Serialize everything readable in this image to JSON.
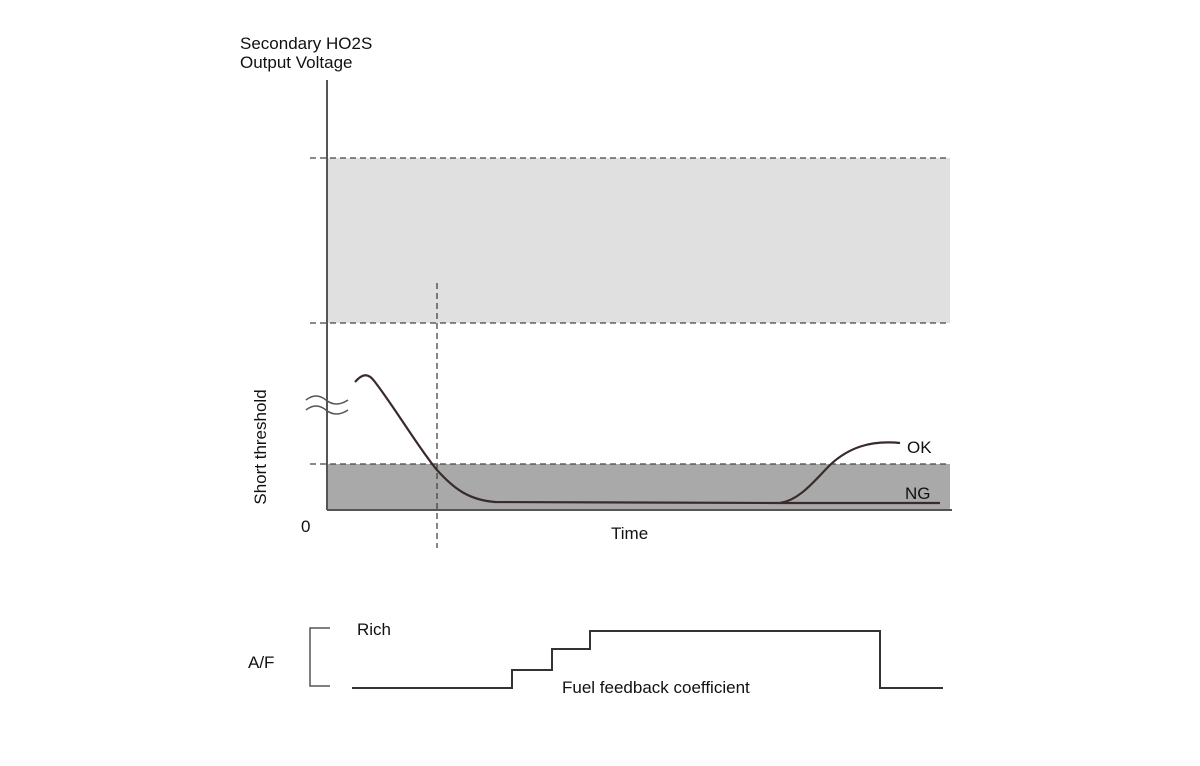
{
  "axis": {
    "title_line1": "Secondary HO2S",
    "title_line2": "Output Voltage",
    "threshold_label": "Short threshold",
    "origin": "0",
    "x_label": "Time"
  },
  "curves": {
    "ok": "OK",
    "ng": "NG"
  },
  "af": {
    "label": "A/F",
    "rich": "Rich",
    "coefficient": "Fuel feedback coefficient"
  }
}
